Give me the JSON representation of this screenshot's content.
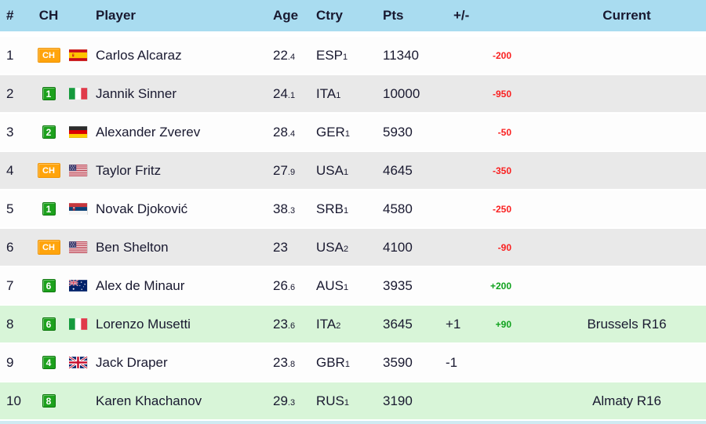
{
  "table": {
    "header": {
      "rank": "#",
      "ch": "CH",
      "player": "Player",
      "age": "Age",
      "ctry": "Ctry",
      "pts": "Pts",
      "plusminus": "+/-",
      "current": "Current"
    },
    "rows": [
      {
        "rank": "1",
        "badge": "CH",
        "flag": "esp",
        "player": "Carlos Alcaraz",
        "age": "22",
        "age_frac": ".4",
        "ctry": "ESP",
        "ctry_n": "1",
        "pts": "11340",
        "move": "",
        "delta": "-200",
        "current": "",
        "shade": "plain"
      },
      {
        "rank": "2",
        "badge": "1",
        "flag": "ita",
        "player": "Jannik Sinner",
        "age": "24",
        "age_frac": ".1",
        "ctry": "ITA",
        "ctry_n": "1",
        "pts": "10000",
        "move": "",
        "delta": "-950",
        "current": "",
        "shade": "alt"
      },
      {
        "rank": "3",
        "badge": "2",
        "flag": "ger",
        "player": "Alexander Zverev",
        "age": "28",
        "age_frac": ".4",
        "ctry": "GER",
        "ctry_n": "1",
        "pts": "5930",
        "move": "",
        "delta": "-50",
        "current": "",
        "shade": "plain"
      },
      {
        "rank": "4",
        "badge": "CH",
        "flag": "usa",
        "player": "Taylor Fritz",
        "age": "27",
        "age_frac": ".9",
        "ctry": "USA",
        "ctry_n": "1",
        "pts": "4645",
        "move": "",
        "delta": "-350",
        "current": "",
        "shade": "alt"
      },
      {
        "rank": "5",
        "badge": "1",
        "flag": "srb",
        "player": "Novak Djoković",
        "age": "38",
        "age_frac": ".3",
        "ctry": "SRB",
        "ctry_n": "1",
        "pts": "4580",
        "move": "",
        "delta": "-250",
        "current": "",
        "shade": "plain"
      },
      {
        "rank": "6",
        "badge": "CH",
        "flag": "usa",
        "player": "Ben Shelton",
        "age": "23",
        "age_frac": "",
        "ctry": "USA",
        "ctry_n": "2",
        "pts": "4100",
        "move": "",
        "delta": "-90",
        "current": "",
        "shade": "alt"
      },
      {
        "rank": "7",
        "badge": "6",
        "flag": "aus",
        "player": "Alex de Minaur",
        "age": "26",
        "age_frac": ".6",
        "ctry": "AUS",
        "ctry_n": "1",
        "pts": "3935",
        "move": "",
        "delta": "+200",
        "current": "",
        "shade": "plain"
      },
      {
        "rank": "8",
        "badge": "6",
        "flag": "ita",
        "player": "Lorenzo Musetti",
        "age": "23",
        "age_frac": ".6",
        "ctry": "ITA",
        "ctry_n": "2",
        "pts": "3645",
        "move": "+1",
        "delta": "+90",
        "current": "Brussels R16",
        "shade": "active"
      },
      {
        "rank": "9",
        "badge": "4",
        "flag": "gbr",
        "player": "Jack Draper",
        "age": "23",
        "age_frac": ".8",
        "ctry": "GBR",
        "ctry_n": "1",
        "pts": "3590",
        "move": "-1",
        "delta": "",
        "current": "",
        "shade": "plain"
      },
      {
        "rank": "10",
        "badge": "8",
        "flag": "",
        "player": "Karen Khachanov",
        "age": "29",
        "age_frac": ".3",
        "ctry": "RUS",
        "ctry_n": "1",
        "pts": "3190",
        "move": "",
        "delta": "",
        "current": "Almaty R16",
        "shade": "active"
      }
    ]
  },
  "colors": {
    "header_bg": "#a9dcf0",
    "text": "#191930",
    "row_alt": "#e9e9e9",
    "row_active": "#d8f5d8",
    "delta_down": "#fa2020",
    "delta_up": "#10a21e",
    "badge_ch": "#ffa40c",
    "badge_num": "#1da11d"
  }
}
